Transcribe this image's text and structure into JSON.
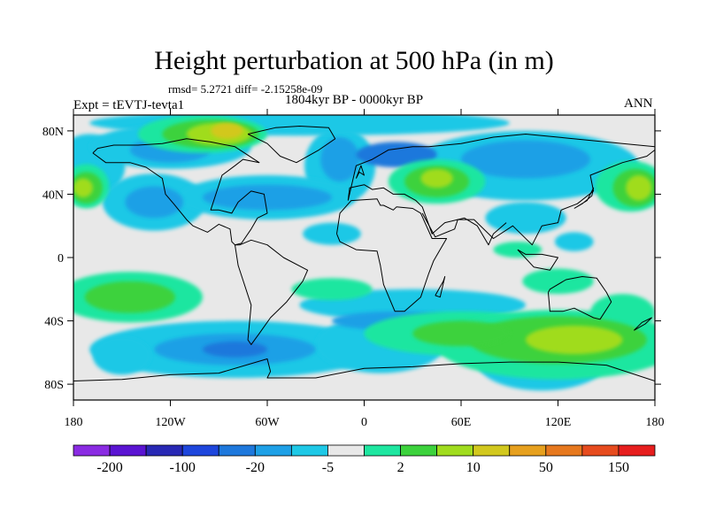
{
  "title": "Height perturbation at 500 hPa (in m)",
  "subtitle_stats": "rmsd= 5.2721 diff= -2.15258e-09",
  "period_label": "1804kyr BP - 0000kyr BP",
  "experiment_label": "Expt = tEVTJ-tevta1",
  "season_label": "ANN",
  "map": {
    "projection": "cylindrical equidistant",
    "lon_range": [
      -180,
      180
    ],
    "lat_range": [
      -90,
      90
    ],
    "background_color": "#e8e8e8",
    "x_ticks": [
      "180",
      "120W",
      "60W",
      "0",
      "60E",
      "120E",
      "180"
    ],
    "y_ticks": [
      "80N",
      "40N",
      "0",
      "40S",
      "80S"
    ]
  },
  "colorbar": {
    "colors": [
      "#8a2be2",
      "#5a14d2",
      "#2828b4",
      "#1e46dc",
      "#1e78dc",
      "#1ea0e6",
      "#1ec8e6",
      "#e8e8e8",
      "#1ee6a0",
      "#3cd23c",
      "#a0dc1e",
      "#d2c81e",
      "#e6a01e",
      "#e6781e",
      "#e64b1e",
      "#e61e1e"
    ],
    "labels": [
      "-200",
      "-100",
      "-20",
      "-5",
      "2",
      "10",
      "50",
      "150"
    ]
  },
  "field_regions": [
    {
      "color": "#1ec8e6",
      "lon": -170,
      "lat": 58,
      "rlon": 22,
      "rlat": 20
    },
    {
      "color": "#1ec8e6",
      "lon": -15,
      "lat": 58,
      "rlon": 22,
      "rlat": 24
    },
    {
      "color": "#1ec8e6",
      "lon": 100,
      "lat": 58,
      "rlon": 70,
      "rlat": 22
    },
    {
      "color": "#1ec8e6",
      "lon": -130,
      "lat": 35,
      "rlon": 32,
      "rlat": 18
    },
    {
      "color": "#1ec8e6",
      "lon": -60,
      "lat": 38,
      "rlon": 55,
      "rlat": 14
    },
    {
      "color": "#1ec8e6",
      "lon": -40,
      "lat": 85,
      "rlon": 130,
      "rlat": 8
    },
    {
      "color": "#1ec8e6",
      "lon": -120,
      "lat": 70,
      "rlon": 50,
      "rlat": 14
    },
    {
      "color": "#1ec8e6",
      "lon": -20,
      "lat": 15,
      "rlon": 18,
      "rlat": 7
    },
    {
      "color": "#1ec8e6",
      "lon": 100,
      "lat": 25,
      "rlon": 25,
      "rlat": 10
    },
    {
      "color": "#1ec8e6",
      "lon": 130,
      "lat": 10,
      "rlon": 12,
      "rlat": 6
    },
    {
      "color": "#1ec8e6",
      "lon": 30,
      "lat": -30,
      "rlon": 70,
      "rlat": 10
    },
    {
      "color": "#1ec8e6",
      "lon": -80,
      "lat": -58,
      "rlon": 90,
      "rlat": 18
    },
    {
      "color": "#1ec8e6",
      "lon": 10,
      "lat": -55,
      "rlon": 40,
      "rlat": 18
    },
    {
      "color": "#1ec8e6",
      "lon": 110,
      "lat": -66,
      "rlon": 40,
      "rlat": 18
    },
    {
      "color": "#1ec8e6",
      "lon": -150,
      "lat": -62,
      "rlon": 18,
      "rlat": 12
    },
    {
      "color": "#1ea0e6",
      "lon": -60,
      "lat": 38,
      "rlon": 40,
      "rlat": 8
    },
    {
      "color": "#1ea0e6",
      "lon": -130,
      "lat": 35,
      "rlon": 18,
      "rlat": 10
    },
    {
      "color": "#1ea0e6",
      "lon": -15,
      "lat": 62,
      "rlon": 12,
      "rlat": 14
    },
    {
      "color": "#1ea0e6",
      "lon": 100,
      "lat": 62,
      "rlon": 40,
      "rlat": 12
    },
    {
      "color": "#1ea0e6",
      "lon": -120,
      "lat": 68,
      "rlon": 25,
      "rlat": 8
    },
    {
      "color": "#1ea0e6",
      "lon": -80,
      "lat": -58,
      "rlon": 50,
      "rlat": 10
    },
    {
      "color": "#1ea0e6",
      "lon": 20,
      "lat": -40,
      "rlon": 40,
      "rlat": 6
    },
    {
      "color": "#1e78dc",
      "lon": -80,
      "lat": -58,
      "rlon": 20,
      "rlat": 5
    },
    {
      "color": "#1e78dc",
      "lon": 20,
      "lat": 65,
      "rlon": 25,
      "rlat": 8
    },
    {
      "color": "#1ee6a0",
      "lon": -100,
      "lat": 78,
      "rlon": 40,
      "rlat": 12
    },
    {
      "color": "#1ee6a0",
      "lon": 45,
      "lat": 48,
      "rlon": 30,
      "rlat": 14
    },
    {
      "color": "#1ee6a0",
      "lon": 165,
      "lat": 45,
      "rlon": 22,
      "rlat": 16
    },
    {
      "color": "#1ee6a0",
      "lon": -172,
      "lat": 45,
      "rlon": 14,
      "rlat": 14
    },
    {
      "color": "#1ee6a0",
      "lon": -145,
      "lat": -25,
      "rlon": 45,
      "rlat": 16
    },
    {
      "color": "#1ee6a0",
      "lon": -20,
      "lat": -20,
      "rlon": 25,
      "rlat": 7
    },
    {
      "color": "#1ee6a0",
      "lon": 60,
      "lat": -48,
      "rlon": 60,
      "rlat": 14
    },
    {
      "color": "#1ee6a0",
      "lon": 120,
      "lat": -55,
      "rlon": 75,
      "rlat": 22
    },
    {
      "color": "#1ee6a0",
      "lon": 120,
      "lat": -15,
      "rlon": 22,
      "rlat": 8
    },
    {
      "color": "#1ee6a0",
      "lon": 160,
      "lat": -35,
      "rlon": 20,
      "rlat": 12
    },
    {
      "color": "#1ee6a0",
      "lon": 95,
      "lat": 5,
      "rlon": 15,
      "rlat": 5
    },
    {
      "color": "#3cd23c",
      "lon": -95,
      "lat": 78,
      "rlon": 30,
      "rlat": 9
    },
    {
      "color": "#3cd23c",
      "lon": 45,
      "lat": 48,
      "rlon": 20,
      "rlat": 10
    },
    {
      "color": "#3cd23c",
      "lon": 168,
      "lat": 44,
      "rlon": 14,
      "rlat": 12
    },
    {
      "color": "#3cd23c",
      "lon": -172,
      "lat": 44,
      "rlon": 10,
      "rlat": 10
    },
    {
      "color": "#3cd23c",
      "lon": -145,
      "lat": -25,
      "rlon": 28,
      "rlat": 10
    },
    {
      "color": "#3cd23c",
      "lon": 120,
      "lat": -52,
      "rlon": 55,
      "rlat": 15
    },
    {
      "color": "#3cd23c",
      "lon": 60,
      "lat": -48,
      "rlon": 30,
      "rlat": 8
    },
    {
      "color": "#a0dc1e",
      "lon": -90,
      "lat": 78,
      "rlon": 20,
      "rlat": 7
    },
    {
      "color": "#a0dc1e",
      "lon": 45,
      "lat": 50,
      "rlon": 10,
      "rlat": 6
    },
    {
      "color": "#a0dc1e",
      "lon": 170,
      "lat": 44,
      "rlon": 8,
      "rlat": 8
    },
    {
      "color": "#a0dc1e",
      "lon": -174,
      "lat": 44,
      "rlon": 6,
      "rlat": 6
    },
    {
      "color": "#a0dc1e",
      "lon": 130,
      "lat": -52,
      "rlon": 30,
      "rlat": 9
    },
    {
      "color": "#d2c81e",
      "lon": -85,
      "lat": 80,
      "rlon": 10,
      "rlat": 5
    }
  ],
  "coastlines": [
    {
      "name": "north-america",
      "lon": [
        -168,
        -160,
        -145,
        -135,
        -125,
        -123,
        -118,
        -110,
        -106,
        -97,
        -90,
        -83,
        -82,
        -80,
        -76,
        -70,
        -66,
        -60,
        -62,
        -70,
        -78,
        -82,
        -90,
        -95,
        -88,
        -80,
        -75,
        -65,
        -80,
        -95,
        -110,
        -125,
        -140,
        -155,
        -165,
        -168
      ],
      "lat": [
        66,
        60,
        60,
        57,
        50,
        40,
        34,
        24,
        20,
        16,
        21,
        18,
        10,
        8,
        9,
        18,
        25,
        28,
        40,
        42,
        35,
        28,
        30,
        30,
        52,
        58,
        62,
        60,
        70,
        73,
        75,
        72,
        71,
        71,
        69,
        66
      ]
    },
    {
      "name": "greenland",
      "lon": [
        -72,
        -55,
        -40,
        -22,
        -18,
        -28,
        -42,
        -52,
        -60,
        -72
      ],
      "lat": [
        78,
        82,
        83,
        82,
        75,
        68,
        60,
        64,
        72,
        78
      ]
    },
    {
      "name": "south-america",
      "lon": [
        -80,
        -77,
        -70,
        -60,
        -50,
        -35,
        -38,
        -48,
        -58,
        -65,
        -70,
        -72,
        -70,
        -78,
        -80
      ],
      "lat": [
        8,
        8,
        11,
        8,
        0,
        -8,
        -15,
        -28,
        -38,
        -48,
        -55,
        -52,
        -30,
        -5,
        8
      ]
    },
    {
      "name": "eurasia",
      "lon": [
        -10,
        -9,
        0,
        5,
        12,
        18,
        25,
        32,
        36,
        42,
        50,
        58,
        68,
        80,
        92,
        104,
        110,
        120,
        122,
        132,
        142,
        140,
        160,
        175,
        180,
        180,
        160,
        140,
        120,
        100,
        80,
        60,
        40,
        30,
        15,
        5,
        -5,
        -10
      ],
      "lat": [
        36,
        44,
        46,
        43,
        44,
        40,
        40,
        36,
        32,
        15,
        22,
        24,
        24,
        12,
        20,
        8,
        20,
        22,
        30,
        34,
        42,
        52,
        60,
        64,
        68,
        70,
        72,
        74,
        76,
        78,
        76,
        72,
        70,
        70,
        68,
        62,
        58,
        36
      ]
    },
    {
      "name": "africa",
      "lon": [
        -17,
        -15,
        -8,
        8,
        10,
        12,
        18,
        20,
        30,
        35,
        42,
        51,
        43,
        40,
        35,
        25,
        19,
        12,
        10,
        8,
        -5,
        -15,
        -17
      ],
      "lat": [
        15,
        28,
        36,
        37,
        33,
        33,
        30,
        32,
        31,
        28,
        12,
        12,
        -2,
        -10,
        -25,
        -34,
        -34,
        -17,
        -5,
        4,
        5,
        10,
        15
      ]
    },
    {
      "name": "arabia-india",
      "lon": [
        36,
        44,
        56,
        58,
        62,
        70,
        77,
        80,
        88
      ],
      "lat": [
        28,
        13,
        18,
        24,
        25,
        20,
        8,
        15,
        22
      ]
    },
    {
      "name": "australia",
      "lon": [
        114,
        115,
        123,
        130,
        136,
        142,
        146,
        153,
        150,
        144,
        135,
        125,
        115,
        114
      ],
      "lat": [
        -22,
        -34,
        -34,
        -32,
        -35,
        -38,
        -39,
        -28,
        -22,
        -13,
        -12,
        -14,
        -20,
        -22
      ]
    },
    {
      "name": "antarctica",
      "lon": [
        -180,
        -150,
        -120,
        -90,
        -60,
        -58,
        -60,
        -30,
        0,
        30,
        60,
        90,
        120,
        150,
        180
      ],
      "lat": [
        -78,
        -77,
        -74,
        -73,
        -64,
        -72,
        -76,
        -76,
        -70,
        -69,
        -67,
        -66,
        -66,
        -68,
        -78
      ]
    },
    {
      "name": "uk",
      "lon": [
        -5,
        -3,
        0,
        -2,
        -5
      ],
      "lat": [
        50,
        54,
        52,
        58,
        50
      ]
    },
    {
      "name": "japan",
      "lon": [
        130,
        135,
        141,
        142,
        138,
        130
      ],
      "lat": [
        31,
        34,
        39,
        44,
        36,
        31
      ]
    },
    {
      "name": "madagascar",
      "lon": [
        44,
        49,
        50,
        47,
        44
      ],
      "lat": [
        -24,
        -15,
        -12,
        -25,
        -24
      ]
    },
    {
      "name": "indonesia",
      "lon": [
        95,
        105,
        115,
        120,
        110,
        100,
        95
      ],
      "lat": [
        5,
        -6,
        -8,
        0,
        2,
        2,
        5
      ]
    },
    {
      "name": "new-zealand",
      "lon": [
        167,
        172,
        178,
        174,
        167
      ],
      "lat": [
        -46,
        -41,
        -38,
        -42,
        -46
      ]
    }
  ]
}
